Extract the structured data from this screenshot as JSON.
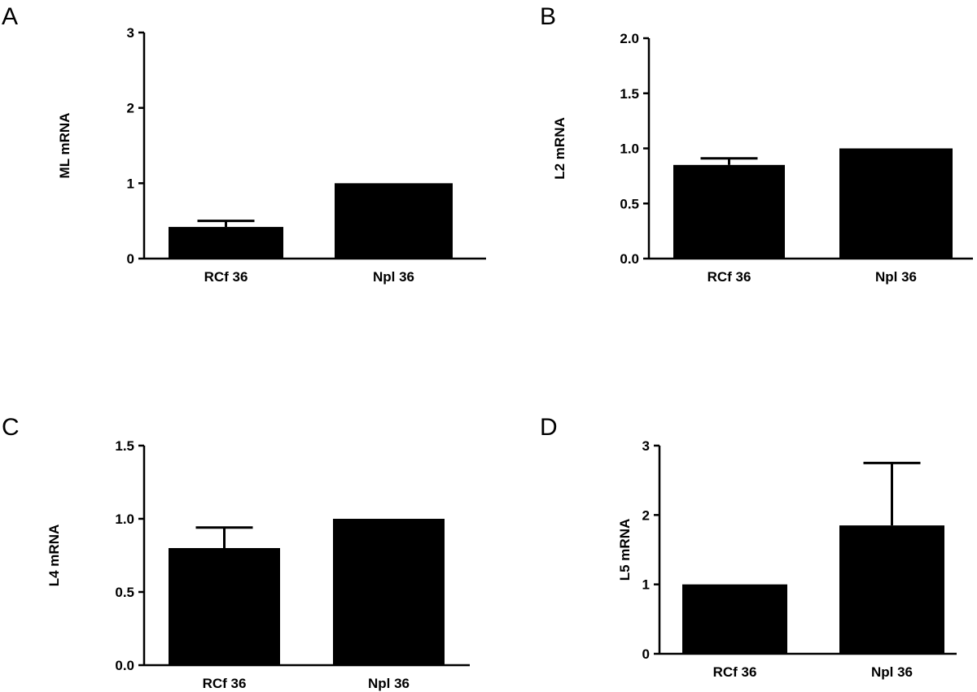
{
  "chart_data": [
    {
      "type": "bar",
      "panel": "A",
      "ylabel": "ML mRNA",
      "categories": [
        "RCf 36",
        "Npl 36"
      ],
      "values": [
        0.42,
        1.0
      ],
      "errors": [
        0.08,
        0
      ],
      "ylim": [
        0,
        3
      ],
      "yticks": [
        0,
        1,
        2,
        3
      ],
      "ytick_labels": [
        "0",
        "1",
        "2",
        "3"
      ],
      "bar_color": "#000000"
    },
    {
      "type": "bar",
      "panel": "B",
      "ylabel": "L2 mRNA",
      "categories": [
        "RCf 36",
        "Npl 36"
      ],
      "values": [
        0.85,
        1.0
      ],
      "errors": [
        0.06,
        0
      ],
      "ylim": [
        0,
        2
      ],
      "yticks": [
        0,
        0.5,
        1,
        1.5,
        2
      ],
      "ytick_labels": [
        "0.0",
        "0.5",
        "1.0",
        "1.5",
        "2.0"
      ],
      "bar_color": "#000000"
    },
    {
      "type": "bar",
      "panel": "C",
      "ylabel": "L4 mRNA",
      "categories": [
        "RCf 36",
        "Npl 36"
      ],
      "values": [
        0.8,
        1.0
      ],
      "errors": [
        0.14,
        0
      ],
      "ylim": [
        0,
        1.5
      ],
      "yticks": [
        0,
        0.5,
        1,
        1.5
      ],
      "ytick_labels": [
        "0.0",
        "0.5",
        "1.0",
        "1.5"
      ],
      "bar_color": "#000000"
    },
    {
      "type": "bar",
      "panel": "D",
      "ylabel": "L5 mRNA",
      "categories": [
        "RCf 36",
        "Npl 36"
      ],
      "values": [
        1.0,
        1.85
      ],
      "errors": [
        0,
        0.9
      ],
      "ylim": [
        0,
        3
      ],
      "yticks": [
        0,
        1,
        2,
        3
      ],
      "ytick_labels": [
        "0",
        "1",
        "2",
        "3"
      ],
      "bar_color": "#000000"
    }
  ]
}
